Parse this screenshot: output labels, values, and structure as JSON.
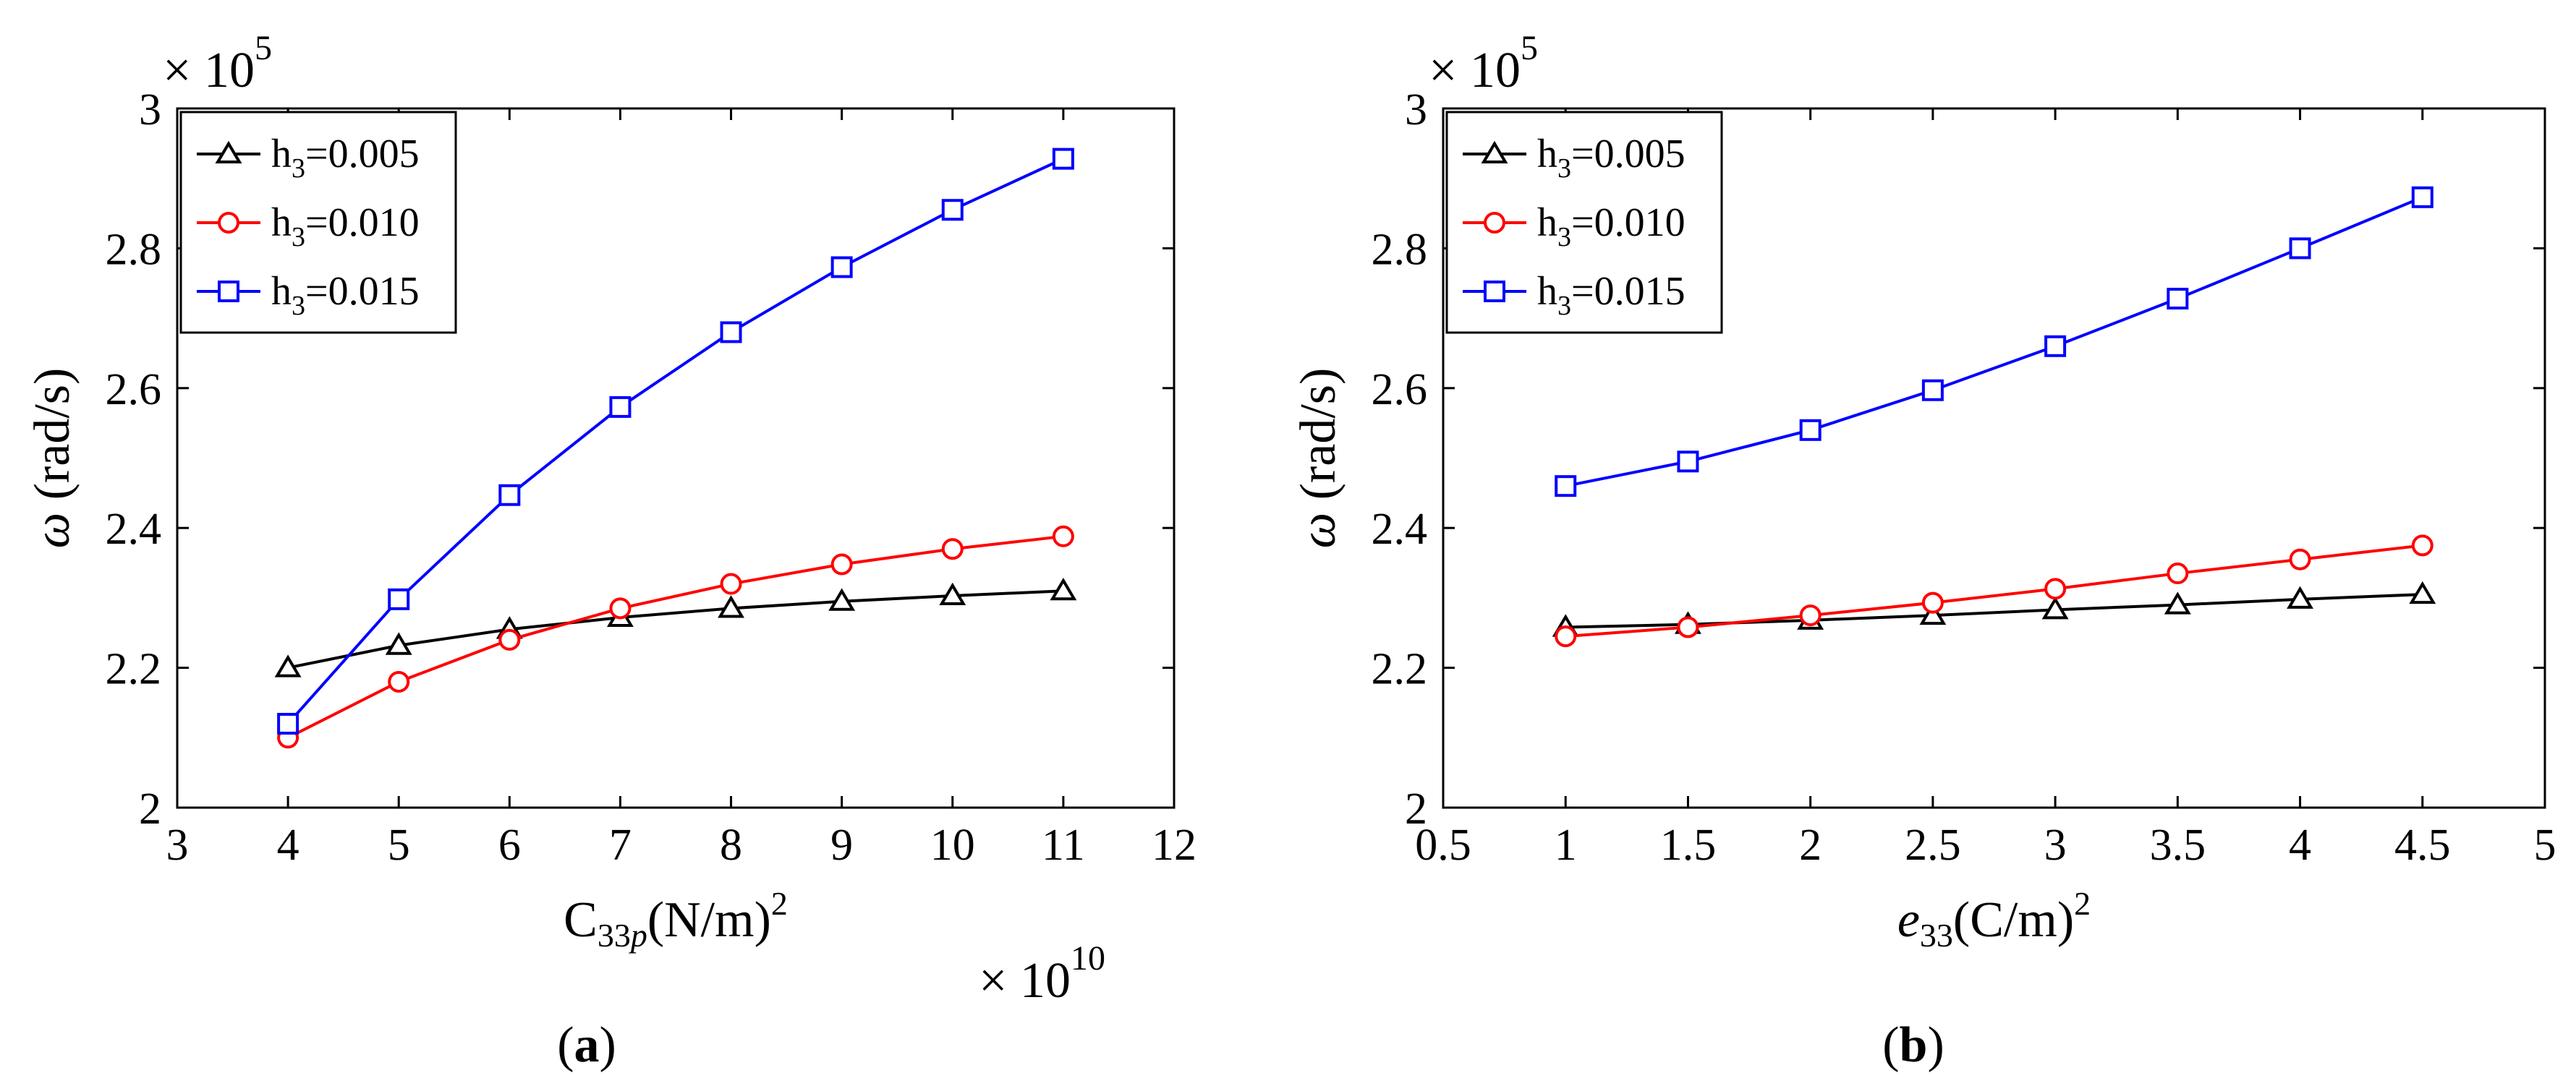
{
  "chart_data": [
    {
      "type": "line",
      "panel_label": "a",
      "caption_open": "(",
      "caption_close": ")",
      "title": "",
      "ylabel_symbol": "ω",
      "ylabel_unit": " (rad/s)",
      "xlabel_main": "C",
      "xlabel_sub": "33",
      "xlabel_sub_italic": "p",
      "xlabel_unit": "(N/m)",
      "xlabel_sup": "2",
      "x_multiplier": "× 10",
      "x_multiplier_exp": "10",
      "y_multiplier": "× 10",
      "y_multiplier_exp": "5",
      "xlim": [
        3,
        12
      ],
      "ylim": [
        2,
        3
      ],
      "xticks": [
        3,
        4,
        5,
        6,
        7,
        8,
        9,
        10,
        11,
        12
      ],
      "xtick_labels": [
        "3",
        "4",
        "5",
        "6",
        "7",
        "8",
        "9",
        "10",
        "11",
        "12"
      ],
      "yticks": [
        2,
        2.2,
        2.4,
        2.6,
        2.8,
        3
      ],
      "ytick_labels": [
        "2",
        "2.2",
        "2.4",
        "2.6",
        "2.8",
        "3"
      ],
      "x": [
        4,
        5,
        6,
        7,
        8,
        9,
        10,
        11
      ],
      "legend_location": "top-left",
      "series": [
        {
          "name": "h3=0.005",
          "label_main": "h",
          "label_sub": "3",
          "label_rest": "=0.005",
          "color": "#000000",
          "marker": "triangle",
          "values": [
            2.2,
            2.232,
            2.255,
            2.272,
            2.285,
            2.295,
            2.303,
            2.31
          ]
        },
        {
          "name": "h3=0.010",
          "label_main": "h",
          "label_sub": "3",
          "label_rest": "=0.010",
          "color": "#ff0000",
          "marker": "circle",
          "values": [
            2.1,
            2.18,
            2.24,
            2.285,
            2.32,
            2.348,
            2.37,
            2.388
          ]
        },
        {
          "name": "h3=0.015",
          "label_main": "h",
          "label_sub": "3",
          "label_rest": "=0.015",
          "color": "#0000ff",
          "marker": "square",
          "values": [
            2.12,
            2.298,
            2.447,
            2.573,
            2.68,
            2.773,
            2.855,
            2.928
          ]
        }
      ]
    },
    {
      "type": "line",
      "panel_label": "b",
      "caption_open": "(",
      "caption_close": ")",
      "title": "",
      "ylabel_symbol": "ω",
      "ylabel_unit": " (rad/s)",
      "xlabel_main": "e",
      "xlabel_sub": "33",
      "xlabel_sub_italic": "",
      "xlabel_unit": "(C/m)",
      "xlabel_sup": "2",
      "x_multiplier": "",
      "x_multiplier_exp": "",
      "y_multiplier": "× 10",
      "y_multiplier_exp": "5",
      "xlim": [
        0.5,
        5
      ],
      "ylim": [
        2,
        3
      ],
      "xticks": [
        0.5,
        1,
        1.5,
        2,
        2.5,
        3,
        3.5,
        4,
        4.5,
        5
      ],
      "xtick_labels": [
        "0.5",
        "1",
        "1.5",
        "2",
        "2.5",
        "3",
        "3.5",
        "4",
        "4.5",
        "5"
      ],
      "yticks": [
        2,
        2.2,
        2.4,
        2.6,
        2.8,
        3
      ],
      "ytick_labels": [
        "2",
        "2.2",
        "2.4",
        "2.6",
        "2.8",
        "3"
      ],
      "x": [
        1,
        1.5,
        2,
        2.5,
        3,
        3.5,
        4,
        4.5
      ],
      "legend_location": "top-left",
      "series": [
        {
          "name": "h3=0.005",
          "label_main": "h",
          "label_sub": "3",
          "label_rest": "=0.005",
          "color": "#000000",
          "marker": "triangle",
          "values": [
            2.258,
            2.262,
            2.268,
            2.275,
            2.283,
            2.29,
            2.298,
            2.305
          ]
        },
        {
          "name": "h3=0.010",
          "label_main": "h",
          "label_sub": "3",
          "label_rest": "=0.010",
          "color": "#ff0000",
          "marker": "circle",
          "values": [
            2.245,
            2.258,
            2.275,
            2.293,
            2.313,
            2.335,
            2.355,
            2.375
          ]
        },
        {
          "name": "h3=0.015",
          "label_main": "h",
          "label_sub": "3",
          "label_rest": "=0.015",
          "color": "#0000ff",
          "marker": "square",
          "values": [
            2.46,
            2.495,
            2.54,
            2.597,
            2.66,
            2.728,
            2.8,
            2.873
          ]
        }
      ]
    }
  ]
}
